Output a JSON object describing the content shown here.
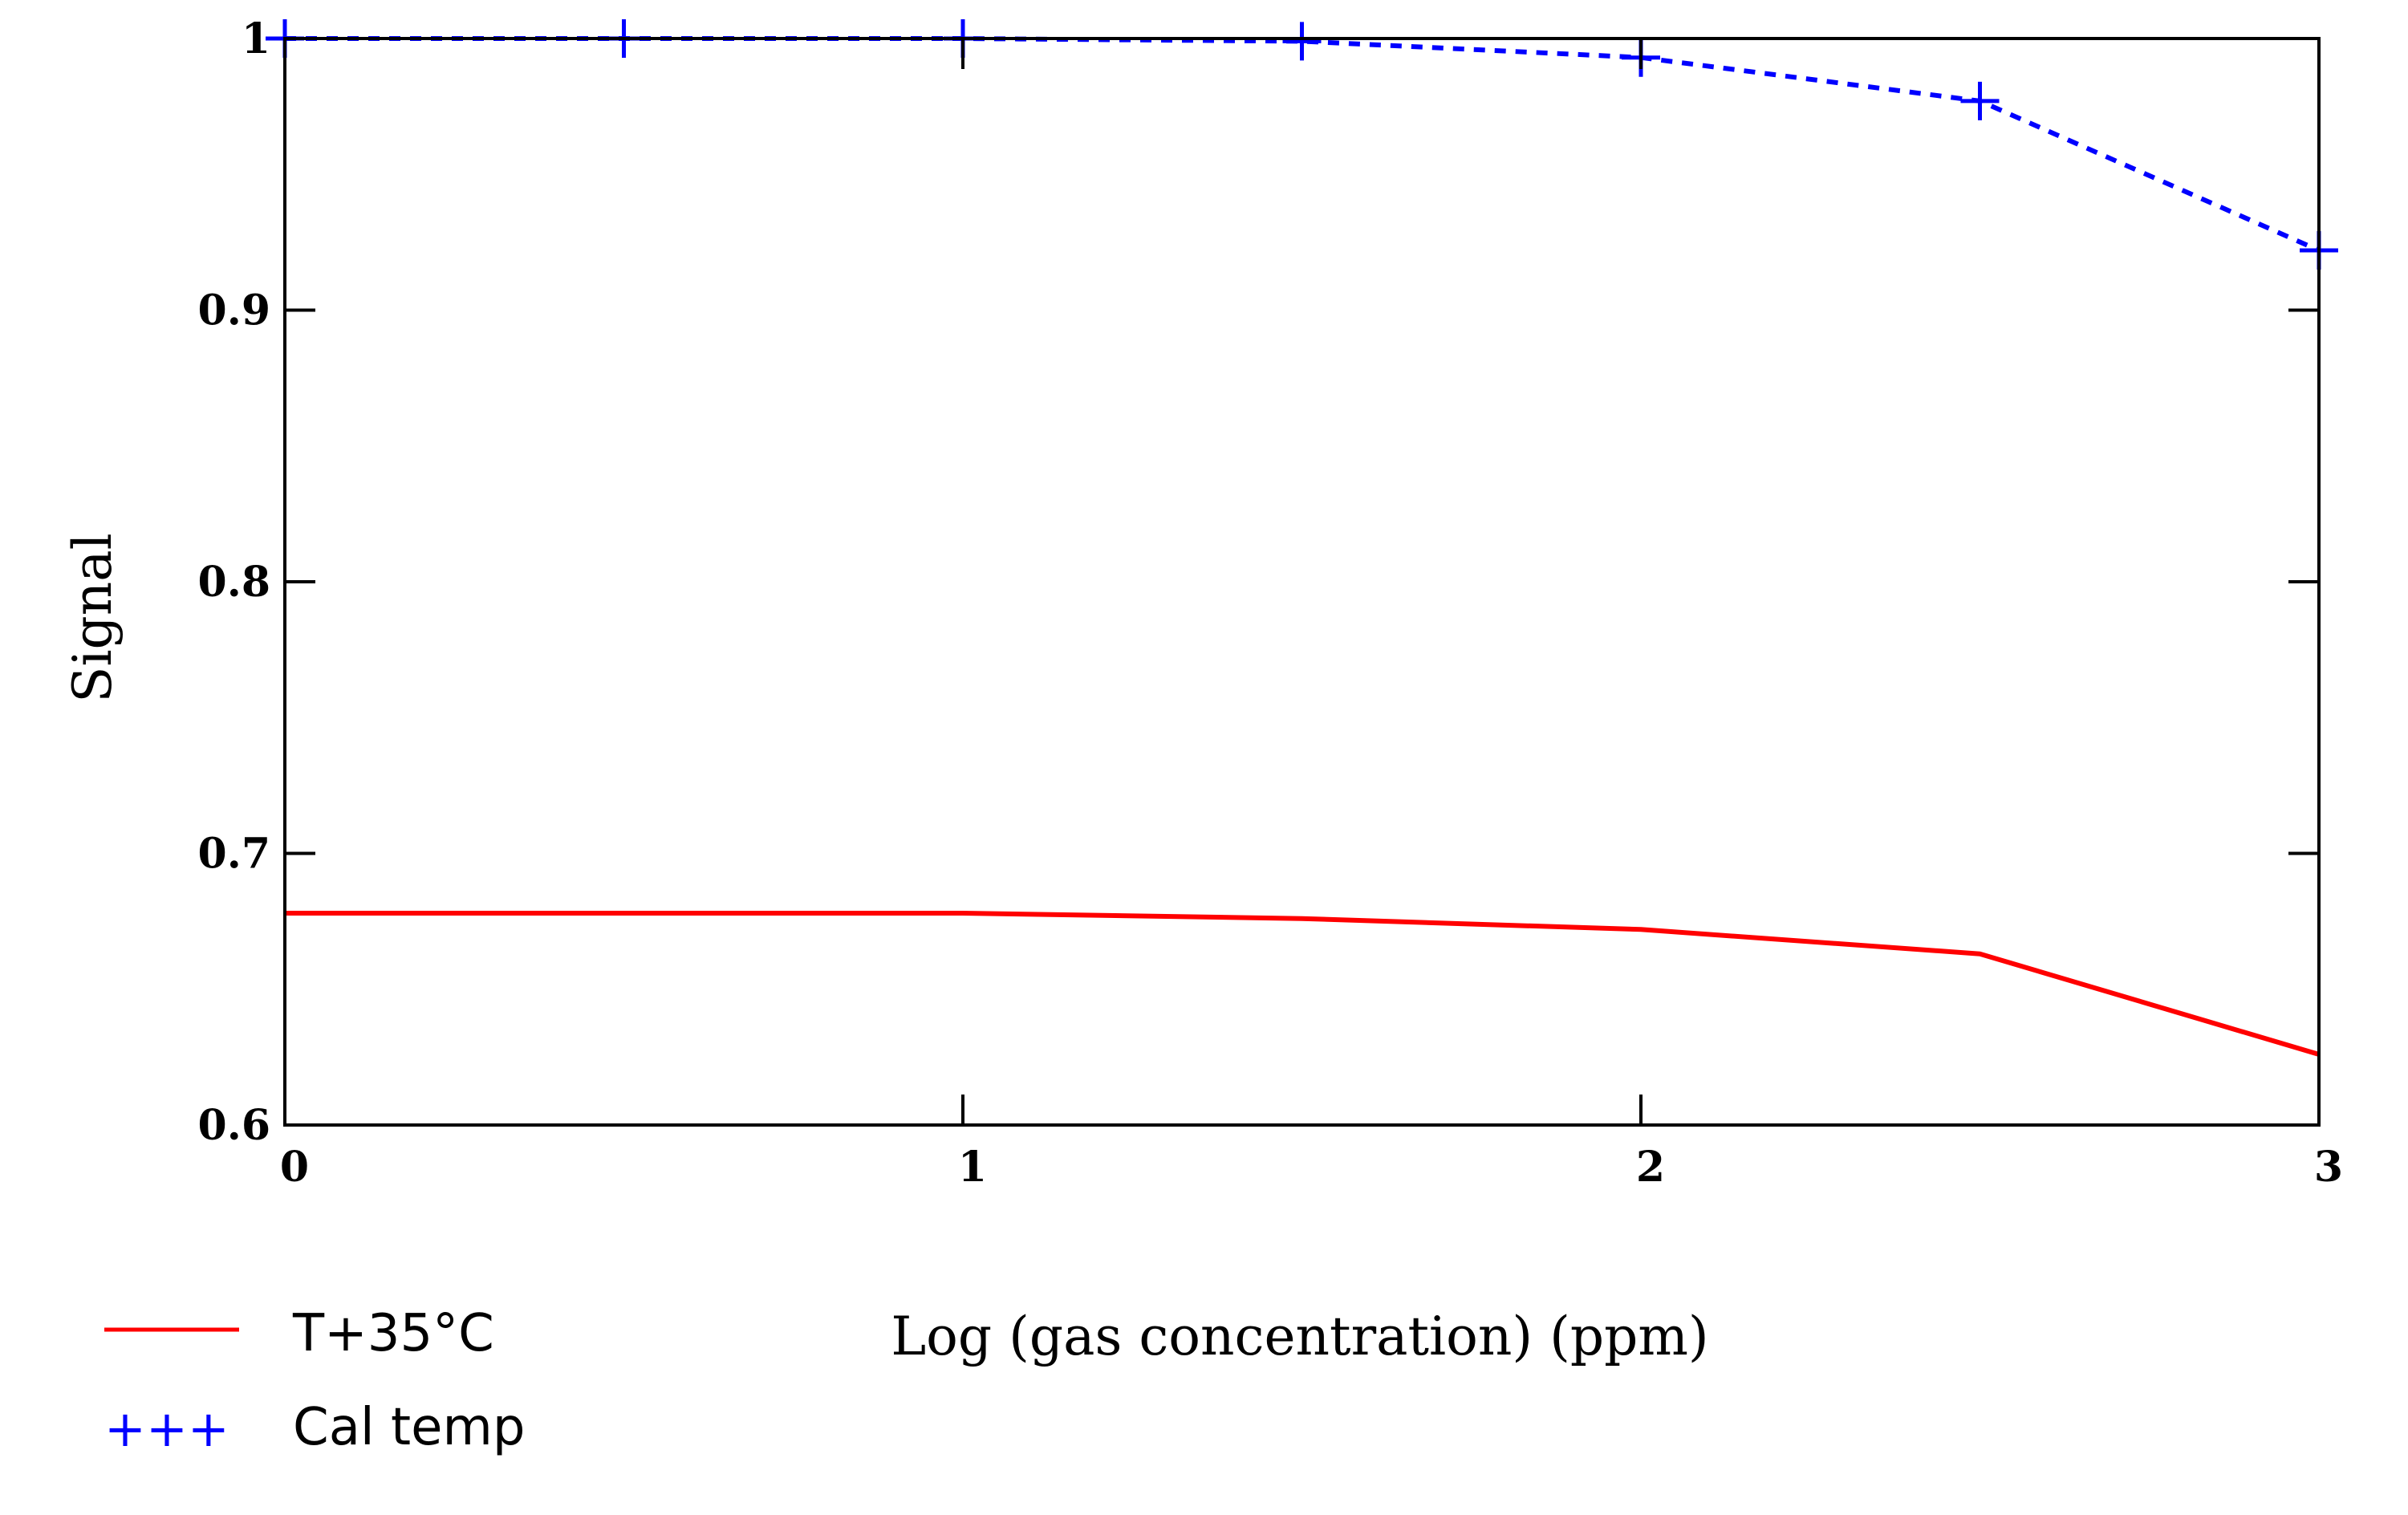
{
  "chart_data": {
    "type": "line",
    "title": "",
    "xlabel": "Log (gas concentration) (ppm)",
    "ylabel": "Signal",
    "xlim": [
      0,
      3
    ],
    "ylim": [
      0.6,
      1.0
    ],
    "xticks": [
      0,
      1,
      2,
      3
    ],
    "xtick_labels": [
      "0",
      "1",
      "2",
      "3"
    ],
    "yticks": [
      0.6,
      0.7,
      0.8,
      0.9,
      1.0
    ],
    "ytick_labels": [
      "0.6",
      "0.7",
      "0.8",
      "0.9",
      "1"
    ],
    "grid": false,
    "legend_position": "bottom-left",
    "series": [
      {
        "name": "T+35°C",
        "legend_symbol": "",
        "color": "#ff0000",
        "style": "solid",
        "marker": "none",
        "x": [
          0,
          0.5,
          1,
          1.5,
          2,
          2.5,
          3
        ],
        "y": [
          0.678,
          0.678,
          0.678,
          0.676,
          0.672,
          0.663,
          0.626
        ]
      },
      {
        "name": "Cal temp",
        "legend_symbol": "+++",
        "color": "#0000ff",
        "style": "dashed",
        "marker": "plus",
        "x": [
          0,
          0.5,
          1,
          1.5,
          2,
          2.5,
          3
        ],
        "y": [
          1.0,
          1.0,
          1.0,
          0.999,
          0.993,
          0.977,
          0.922
        ]
      }
    ]
  }
}
